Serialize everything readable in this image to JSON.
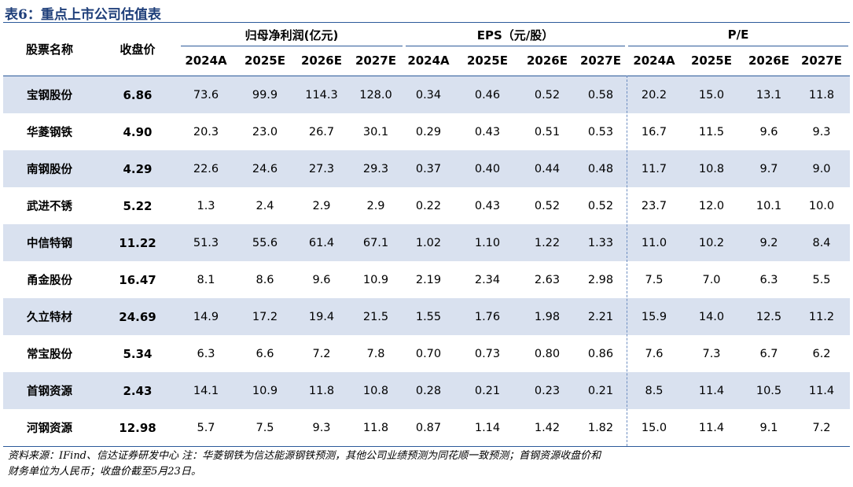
{
  "title": "表6：重点上市公司估值表",
  "headers": {
    "name": "股票名称",
    "price": "收盘价",
    "groups": [
      "归母净利润(亿元)",
      "EPS（元/股）",
      "P/E"
    ],
    "years": [
      "2024A",
      "2025E",
      "2026E",
      "2027E"
    ]
  },
  "rows": [
    {
      "name": "宝钢股份",
      "price": "6.86",
      "profit": [
        "73.6",
        "99.9",
        "114.3",
        "128.0"
      ],
      "eps": [
        "0.34",
        "0.46",
        "0.52",
        "0.58"
      ],
      "pe": [
        "20.2",
        "15.0",
        "13.1",
        "11.8"
      ]
    },
    {
      "name": "华菱钢铁",
      "price": "4.90",
      "profit": [
        "20.3",
        "23.0",
        "26.7",
        "30.1"
      ],
      "eps": [
        "0.29",
        "0.43",
        "0.51",
        "0.53"
      ],
      "pe": [
        "16.7",
        "11.5",
        "9.6",
        "9.3"
      ]
    },
    {
      "name": "南钢股份",
      "price": "4.29",
      "profit": [
        "22.6",
        "24.6",
        "27.3",
        "29.3"
      ],
      "eps": [
        "0.37",
        "0.40",
        "0.44",
        "0.48"
      ],
      "pe": [
        "11.7",
        "10.8",
        "9.7",
        "9.0"
      ]
    },
    {
      "name": "武进不锈",
      "price": "5.22",
      "profit": [
        "1.3",
        "2.4",
        "2.9",
        "2.9"
      ],
      "eps": [
        "0.22",
        "0.43",
        "0.52",
        "0.52"
      ],
      "pe": [
        "23.7",
        "12.0",
        "10.1",
        "10.0"
      ]
    },
    {
      "name": "中信特钢",
      "price": "11.22",
      "profit": [
        "51.3",
        "55.6",
        "61.4",
        "67.1"
      ],
      "eps": [
        "1.02",
        "1.10",
        "1.22",
        "1.33"
      ],
      "pe": [
        "11.0",
        "10.2",
        "9.2",
        "8.4"
      ]
    },
    {
      "name": "甬金股份",
      "price": "16.47",
      "profit": [
        "8.1",
        "8.6",
        "9.6",
        "10.9"
      ],
      "eps": [
        "2.19",
        "2.34",
        "2.63",
        "2.98"
      ],
      "pe": [
        "7.5",
        "7.0",
        "6.3",
        "5.5"
      ]
    },
    {
      "name": "久立特材",
      "price": "24.69",
      "profit": [
        "14.9",
        "17.2",
        "19.4",
        "21.5"
      ],
      "eps": [
        "1.55",
        "1.76",
        "1.98",
        "2.21"
      ],
      "pe": [
        "15.9",
        "14.0",
        "12.5",
        "11.2"
      ]
    },
    {
      "name": "常宝股份",
      "price": "5.34",
      "profit": [
        "6.3",
        "6.6",
        "7.2",
        "7.8"
      ],
      "eps": [
        "0.70",
        "0.73",
        "0.80",
        "0.86"
      ],
      "pe": [
        "7.6",
        "7.3",
        "6.7",
        "6.2"
      ]
    },
    {
      "name": "首钢资源",
      "price": "2.43",
      "profit": [
        "14.1",
        "10.9",
        "11.8",
        "10.8"
      ],
      "eps": [
        "0.28",
        "0.21",
        "0.23",
        "0.21"
      ],
      "pe": [
        "8.5",
        "11.4",
        "10.5",
        "11.4"
      ]
    },
    {
      "name": "河钢资源",
      "price": "12.98",
      "profit": [
        "5.7",
        "7.5",
        "9.3",
        "11.8"
      ],
      "eps": [
        "0.87",
        "1.14",
        "1.42",
        "1.82"
      ],
      "pe": [
        "15.0",
        "11.4",
        "9.1",
        "7.2"
      ]
    }
  ],
  "note_line1": "资料来源：IFind、信达证券研发中心   注：华菱钢铁为信达能源钢铁预测，其他公司业绩预测为同花顺一致预测；首钢资源收盘价和",
  "note_line2": "财务单位为人民币；收盘价截至5月23日。"
}
